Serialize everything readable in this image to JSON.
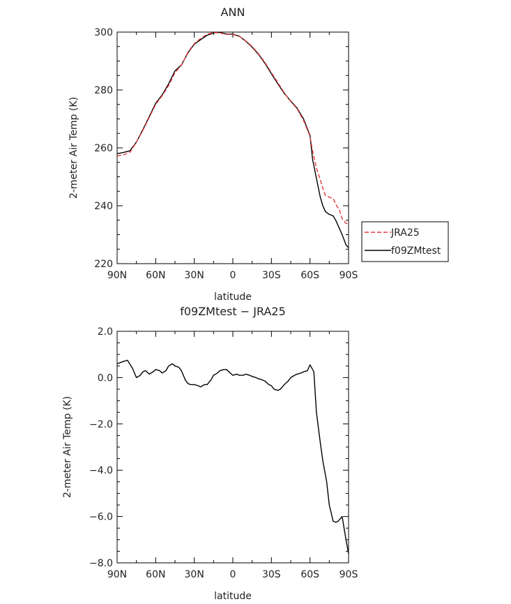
{
  "chart_data": [
    {
      "type": "line",
      "title": "ANN",
      "xlabel": "latitude",
      "ylabel": "2-meter Air Temp (K)",
      "xlim": [
        90,
        -90
      ],
      "ylim": [
        220,
        300
      ],
      "x_ticks": [
        90,
        60,
        30,
        0,
        -30,
        -60,
        -90
      ],
      "x_tick_labels": [
        "90N",
        "60N",
        "30N",
        "0",
        "30S",
        "60S",
        "90S"
      ],
      "y_ticks": [
        220,
        240,
        260,
        280,
        300
      ],
      "y_tick_labels": [
        "220",
        "240",
        "260",
        "280",
        "300"
      ],
      "legend_position": "right-bottom",
      "series": [
        {
          "name": "JRA25",
          "color": "#e8383a",
          "dash": "dashed",
          "x": [
            90,
            85,
            80,
            75,
            70,
            65,
            60,
            55,
            50,
            45,
            40,
            35,
            30,
            25,
            20,
            15,
            10,
            5,
            0,
            -5,
            -10,
            -15,
            -20,
            -25,
            -30,
            -35,
            -40,
            -45,
            -50,
            -55,
            -60,
            -62,
            -65,
            -68,
            -70,
            -72,
            -75,
            -78,
            -80,
            -83,
            -85,
            -88,
            -90
          ],
          "y": [
            257.2,
            257.6,
            258.5,
            262.0,
            266.0,
            270.5,
            275.0,
            278.0,
            281.5,
            286.0,
            288.5,
            293.0,
            296.0,
            297.8,
            299.3,
            299.8,
            299.7,
            299.2,
            299.2,
            298.5,
            297.0,
            295.0,
            292.5,
            289.5,
            286.0,
            282.5,
            279.0,
            276.0,
            273.5,
            269.5,
            264.0,
            259.0,
            253.0,
            249.0,
            246.0,
            243.5,
            243.0,
            242.5,
            240.5,
            238.5,
            235.5,
            234.0,
            233.5
          ]
        },
        {
          "name": "f09ZMtest",
          "color": "#000000",
          "dash": "solid",
          "x": [
            90,
            85,
            80,
            75,
            70,
            65,
            60,
            55,
            50,
            45,
            40,
            35,
            30,
            25,
            20,
            15,
            10,
            5,
            0,
            -5,
            -10,
            -15,
            -20,
            -25,
            -30,
            -35,
            -40,
            -45,
            -50,
            -55,
            -60,
            -62,
            -65,
            -68,
            -70,
            -72,
            -75,
            -78,
            -80,
            -83,
            -85,
            -88,
            -90
          ],
          "y": [
            258.0,
            258.4,
            259.0,
            262.0,
            266.3,
            270.8,
            275.4,
            278.3,
            282.1,
            286.6,
            288.6,
            292.8,
            295.8,
            297.4,
            298.9,
            299.7,
            299.9,
            299.3,
            299.3,
            298.6,
            296.9,
            294.8,
            292.3,
            289.2,
            285.6,
            282.1,
            278.8,
            276.2,
            273.7,
            270.0,
            264.3,
            256.0,
            249.5,
            243.0,
            240.0,
            238.0,
            237.0,
            236.5,
            235.0,
            232.0,
            230.0,
            226.5,
            225.5
          ]
        }
      ]
    },
    {
      "type": "line",
      "title": "f09ZMtest − JRA25",
      "xlabel": "latitude",
      "ylabel": "2-meter Air Temp (K)",
      "xlim": [
        90,
        -90
      ],
      "ylim": [
        -8.0,
        2.0
      ],
      "x_ticks": [
        90,
        60,
        30,
        0,
        -30,
        -60,
        -90
      ],
      "x_tick_labels": [
        "90N",
        "60N",
        "30N",
        "0",
        "30S",
        "60S",
        "90S"
      ],
      "y_ticks": [
        -8,
        -6,
        -4,
        -2,
        0,
        2
      ],
      "y_tick_labels": [
        "−8.0",
        "−6.0",
        "−4.0",
        "−2.0",
        "0.0",
        "2.0"
      ],
      "series": [
        {
          "color": "#000000",
          "dash": "solid",
          "x": [
            90,
            85,
            82,
            78,
            75,
            72,
            70,
            68,
            65,
            62,
            60,
            57,
            55,
            52,
            50,
            47,
            45,
            42,
            40,
            37,
            35,
            33,
            30,
            27,
            25,
            22,
            20,
            17,
            15,
            12,
            10,
            7,
            5,
            2,
            0,
            -3,
            -5,
            -8,
            -10,
            -13,
            -15,
            -18,
            -20,
            -23,
            -25,
            -28,
            -30,
            -32,
            -35,
            -37,
            -40,
            -43,
            -45,
            -48,
            -50,
            -53,
            -55,
            -58,
            -60,
            -63,
            -65,
            -68,
            -70,
            -73,
            -75,
            -78,
            -80,
            -82,
            -85,
            -88,
            -90
          ],
          "y": [
            0.6,
            0.7,
            0.75,
            0.4,
            0.0,
            0.1,
            0.25,
            0.3,
            0.15,
            0.25,
            0.35,
            0.3,
            0.2,
            0.3,
            0.5,
            0.6,
            0.5,
            0.45,
            0.3,
            -0.1,
            -0.25,
            -0.3,
            -0.3,
            -0.35,
            -0.4,
            -0.3,
            -0.3,
            -0.1,
            0.1,
            0.2,
            0.3,
            0.35,
            0.35,
            0.2,
            0.1,
            0.15,
            0.1,
            0.1,
            0.15,
            0.1,
            0.05,
            0.0,
            -0.05,
            -0.1,
            -0.15,
            -0.3,
            -0.35,
            -0.5,
            -0.55,
            -0.5,
            -0.3,
            -0.15,
            0.0,
            0.1,
            0.15,
            0.2,
            0.25,
            0.3,
            0.55,
            0.25,
            -1.5,
            -2.8,
            -3.6,
            -4.5,
            -5.5,
            -6.2,
            -6.25,
            -6.2,
            -6.0,
            -7.0,
            -7.6
          ]
        }
      ]
    }
  ]
}
